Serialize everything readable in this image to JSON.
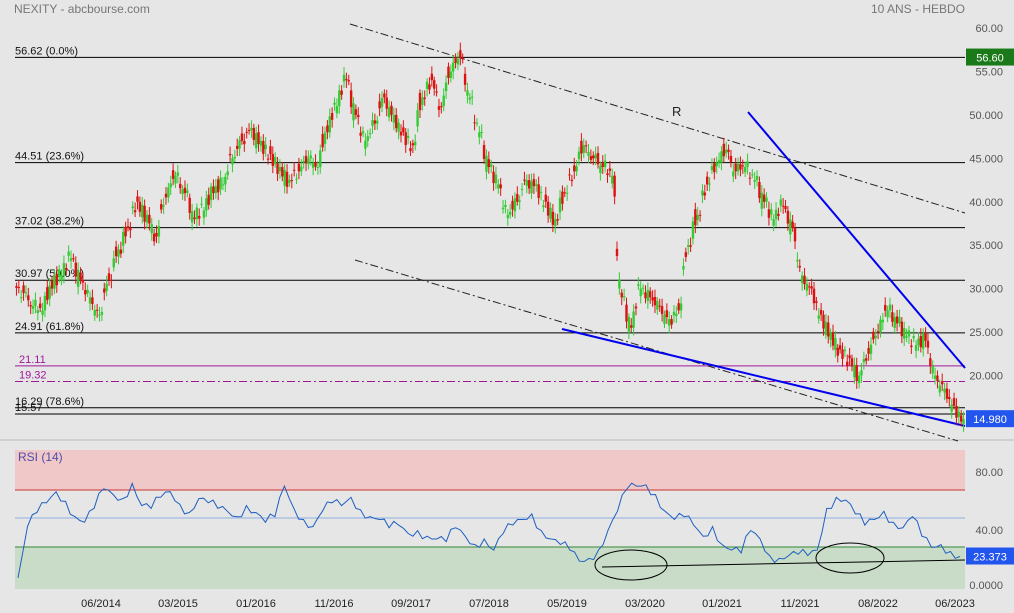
{
  "header": {
    "title": "NEXITY - abcbourse.com",
    "period": "10 ANS - HEBDO"
  },
  "colors": {
    "background": "#e6e6e6",
    "candle_up": "#33cc33",
    "candle_down": "#dd1111",
    "fib_lines": "#000000",
    "support_lines": "#a0189a",
    "trend_lines": "#0000ee",
    "rsi_line": "#1f5fbf",
    "rsi_overbought": "#f0c8c8",
    "rsi_oversold": "#c8dcc8",
    "last_price_bg": "#2255ee",
    "high_price_bg": "#1a7a1a"
  },
  "chart_data": [
    {
      "type": "candlestick",
      "title": "NEXITY - abcbourse.com",
      "subtitle": "10 ANS - HEBDO",
      "y_axis": {
        "ticks": [
          "60.00",
          "55.00",
          "50.000",
          "45.000",
          "40.000",
          "35.000",
          "30.000",
          "25.000",
          "20.000",
          "15.000"
        ],
        "ylim": [
          13.5,
          61.5
        ]
      },
      "x_axis": {
        "ticks": [
          "06/2014",
          "03/2015",
          "01/2016",
          "11/2016",
          "09/2017",
          "07/2018",
          "05/2019",
          "03/2020",
          "01/2021",
          "11/2021",
          "08/2022",
          "06/2023"
        ]
      },
      "fibonacci_levels": [
        {
          "price": 56.62,
          "label": "56.62  (0.0%)"
        },
        {
          "price": 44.51,
          "label": "44.51  (23.6%)"
        },
        {
          "price": 37.02,
          "label": "37.02  (38.2%)"
        },
        {
          "price": 30.97,
          "label": "30.97  (50.0%)"
        },
        {
          "price": 24.91,
          "label": "24.91  (61.8%)"
        },
        {
          "price": 16.29,
          "label": "16.29  (78.6%)"
        },
        {
          "price": 15.57,
          "label": "15.57"
        }
      ],
      "support_levels": [
        {
          "price": 21.11,
          "label": "21.11",
          "style": "solid"
        },
        {
          "price": 19.32,
          "label": "19.32",
          "style": "dashdot"
        }
      ],
      "annotations": [
        {
          "text": "R"
        }
      ],
      "price_badges": [
        {
          "text": "56.60",
          "price": 56.6,
          "kind": "high"
        },
        {
          "text": "14.980",
          "price": 14.98,
          "kind": "last"
        }
      ],
      "series": [
        {
          "name": "Close",
          "values": [
            29.5,
            28.0,
            27.5,
            30.0,
            31.5,
            33.5,
            31.0,
            29.0,
            27.0,
            31.0,
            34.5,
            37.0,
            40.0,
            38.5,
            36.0,
            40.5,
            43.0,
            41.0,
            38.0,
            39.0,
            41.0,
            42.0,
            45.0,
            47.0,
            48.5,
            47.0,
            45.5,
            44.0,
            42.5,
            43.5,
            45.0,
            44.0,
            48.0,
            51.0,
            54.0,
            50.0,
            47.0,
            49.0,
            52.0,
            50.0,
            48.0,
            46.5,
            52.0,
            54.0,
            51.0,
            55.0,
            56.6,
            52.0,
            48.0,
            44.0,
            42.0,
            38.5,
            40.0,
            42.5,
            42.0,
            40.0,
            38.0,
            41.0,
            43.5,
            46.5,
            45.0,
            44.0,
            43.0,
            29.0,
            25.5,
            30.0,
            29.0,
            28.0,
            26.5,
            27.5,
            35.0,
            38.5,
            42.0,
            44.5,
            46.0,
            43.5,
            44.0,
            42.5,
            40.0,
            38.0,
            39.5,
            37.0,
            31.5,
            30.0,
            27.0,
            25.0,
            23.0,
            22.0,
            20.0,
            22.5,
            25.0,
            27.5,
            26.0,
            24.5,
            23.5,
            24.0,
            20.0,
            18.5,
            16.5,
            14.98
          ]
        }
      ]
    },
    {
      "type": "line",
      "title": "RSI (14)",
      "y_axis": {
        "ticks": [
          "80.00",
          "40.00",
          "0.0000"
        ],
        "ylim": [
          0,
          100
        ]
      },
      "zones": {
        "overbought": 70,
        "oversold": 30
      },
      "reference_lines": [
        48,
        30
      ],
      "price_badges": [
        {
          "text": "23.373",
          "value": 23.373
        }
      ],
      "series": [
        {
          "name": "RSI (14)",
          "values": [
            8,
            45,
            55,
            62,
            70,
            63,
            52,
            48,
            58,
            72,
            68,
            65,
            76,
            60,
            58,
            66,
            70,
            61,
            55,
            65,
            62,
            58,
            56,
            52,
            60,
            55,
            48,
            52,
            74,
            58,
            50,
            45,
            56,
            62,
            60,
            66,
            57,
            52,
            50,
            44,
            46,
            40,
            42,
            38,
            36,
            34,
            44,
            38,
            32,
            36,
            28,
            40,
            46,
            50,
            54,
            42,
            36,
            32,
            28,
            20,
            22,
            28,
            42,
            56,
            72,
            74,
            75,
            68,
            56,
            50,
            52,
            46,
            38,
            45,
            32,
            28,
            26,
            42,
            36,
            24,
            22,
            24,
            25,
            24,
            28,
            58,
            66,
            64,
            54,
            46,
            50,
            56,
            48,
            44,
            52,
            38,
            30,
            32,
            27,
            23.373
          ]
        }
      ]
    }
  ]
}
